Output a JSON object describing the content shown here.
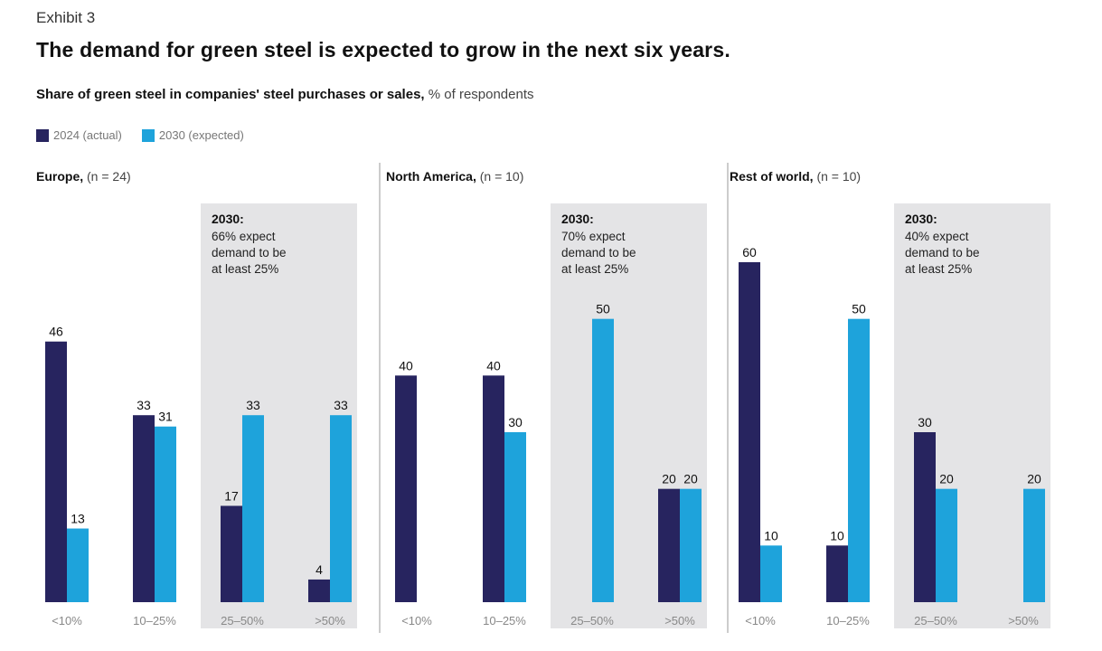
{
  "exhibit": "Exhibit 3",
  "title": "The demand for green steel is expected to grow in the next six years.",
  "subtitle_bold": "Share of green steel in companies' steel purchases or sales,",
  "subtitle_unit": "% of respondents",
  "colors": {
    "actual_2024": "#27245f",
    "expected_2030": "#1ea3db",
    "highlight_box": "#e4e4e6",
    "divider": "#bbbbbb"
  },
  "chart_data": {
    "type": "bar",
    "title": "The demand for green steel is expected to grow in the next six years.",
    "ylabel": "% of respondents",
    "ylim": [
      0,
      60
    ],
    "grid": false,
    "legend_placement": "top-left",
    "legend": [
      "2024 (actual)",
      "2030 (expected)"
    ],
    "categories": [
      "<10%",
      "10–25%",
      "25–50%",
      ">50%"
    ],
    "panels": [
      {
        "region": "Europe,",
        "n_label": "(n = 24)",
        "series": [
          {
            "name": "2024 (actual)",
            "values": [
              46,
              33,
              17,
              4
            ]
          },
          {
            "name": "2030 (expected)",
            "values": [
              13,
              31,
              33,
              33
            ]
          }
        ],
        "note": {
          "heading": "2030:",
          "lines": [
            "66% expect",
            "demand to be",
            "at least 25%"
          ]
        }
      },
      {
        "region": "North America,",
        "n_label": "(n = 10)",
        "series": [
          {
            "name": "2024 (actual)",
            "values": [
              40,
              40,
              null,
              20
            ]
          },
          {
            "name": "2030 (expected)",
            "values": [
              null,
              30,
              50,
              20
            ]
          }
        ],
        "note": {
          "heading": "2030:",
          "lines": [
            "70% expect",
            "demand to be",
            "at least 25%"
          ]
        }
      },
      {
        "region": "Rest of world,",
        "n_label": "(n = 10)",
        "series": [
          {
            "name": "2024 (actual)",
            "values": [
              60,
              10,
              30,
              null
            ]
          },
          {
            "name": "2030 (expected)",
            "values": [
              10,
              50,
              20,
              20
            ]
          }
        ],
        "note": {
          "heading": "2030:",
          "lines": [
            "40% expect",
            "demand to be",
            "at least 25%"
          ]
        }
      }
    ]
  }
}
